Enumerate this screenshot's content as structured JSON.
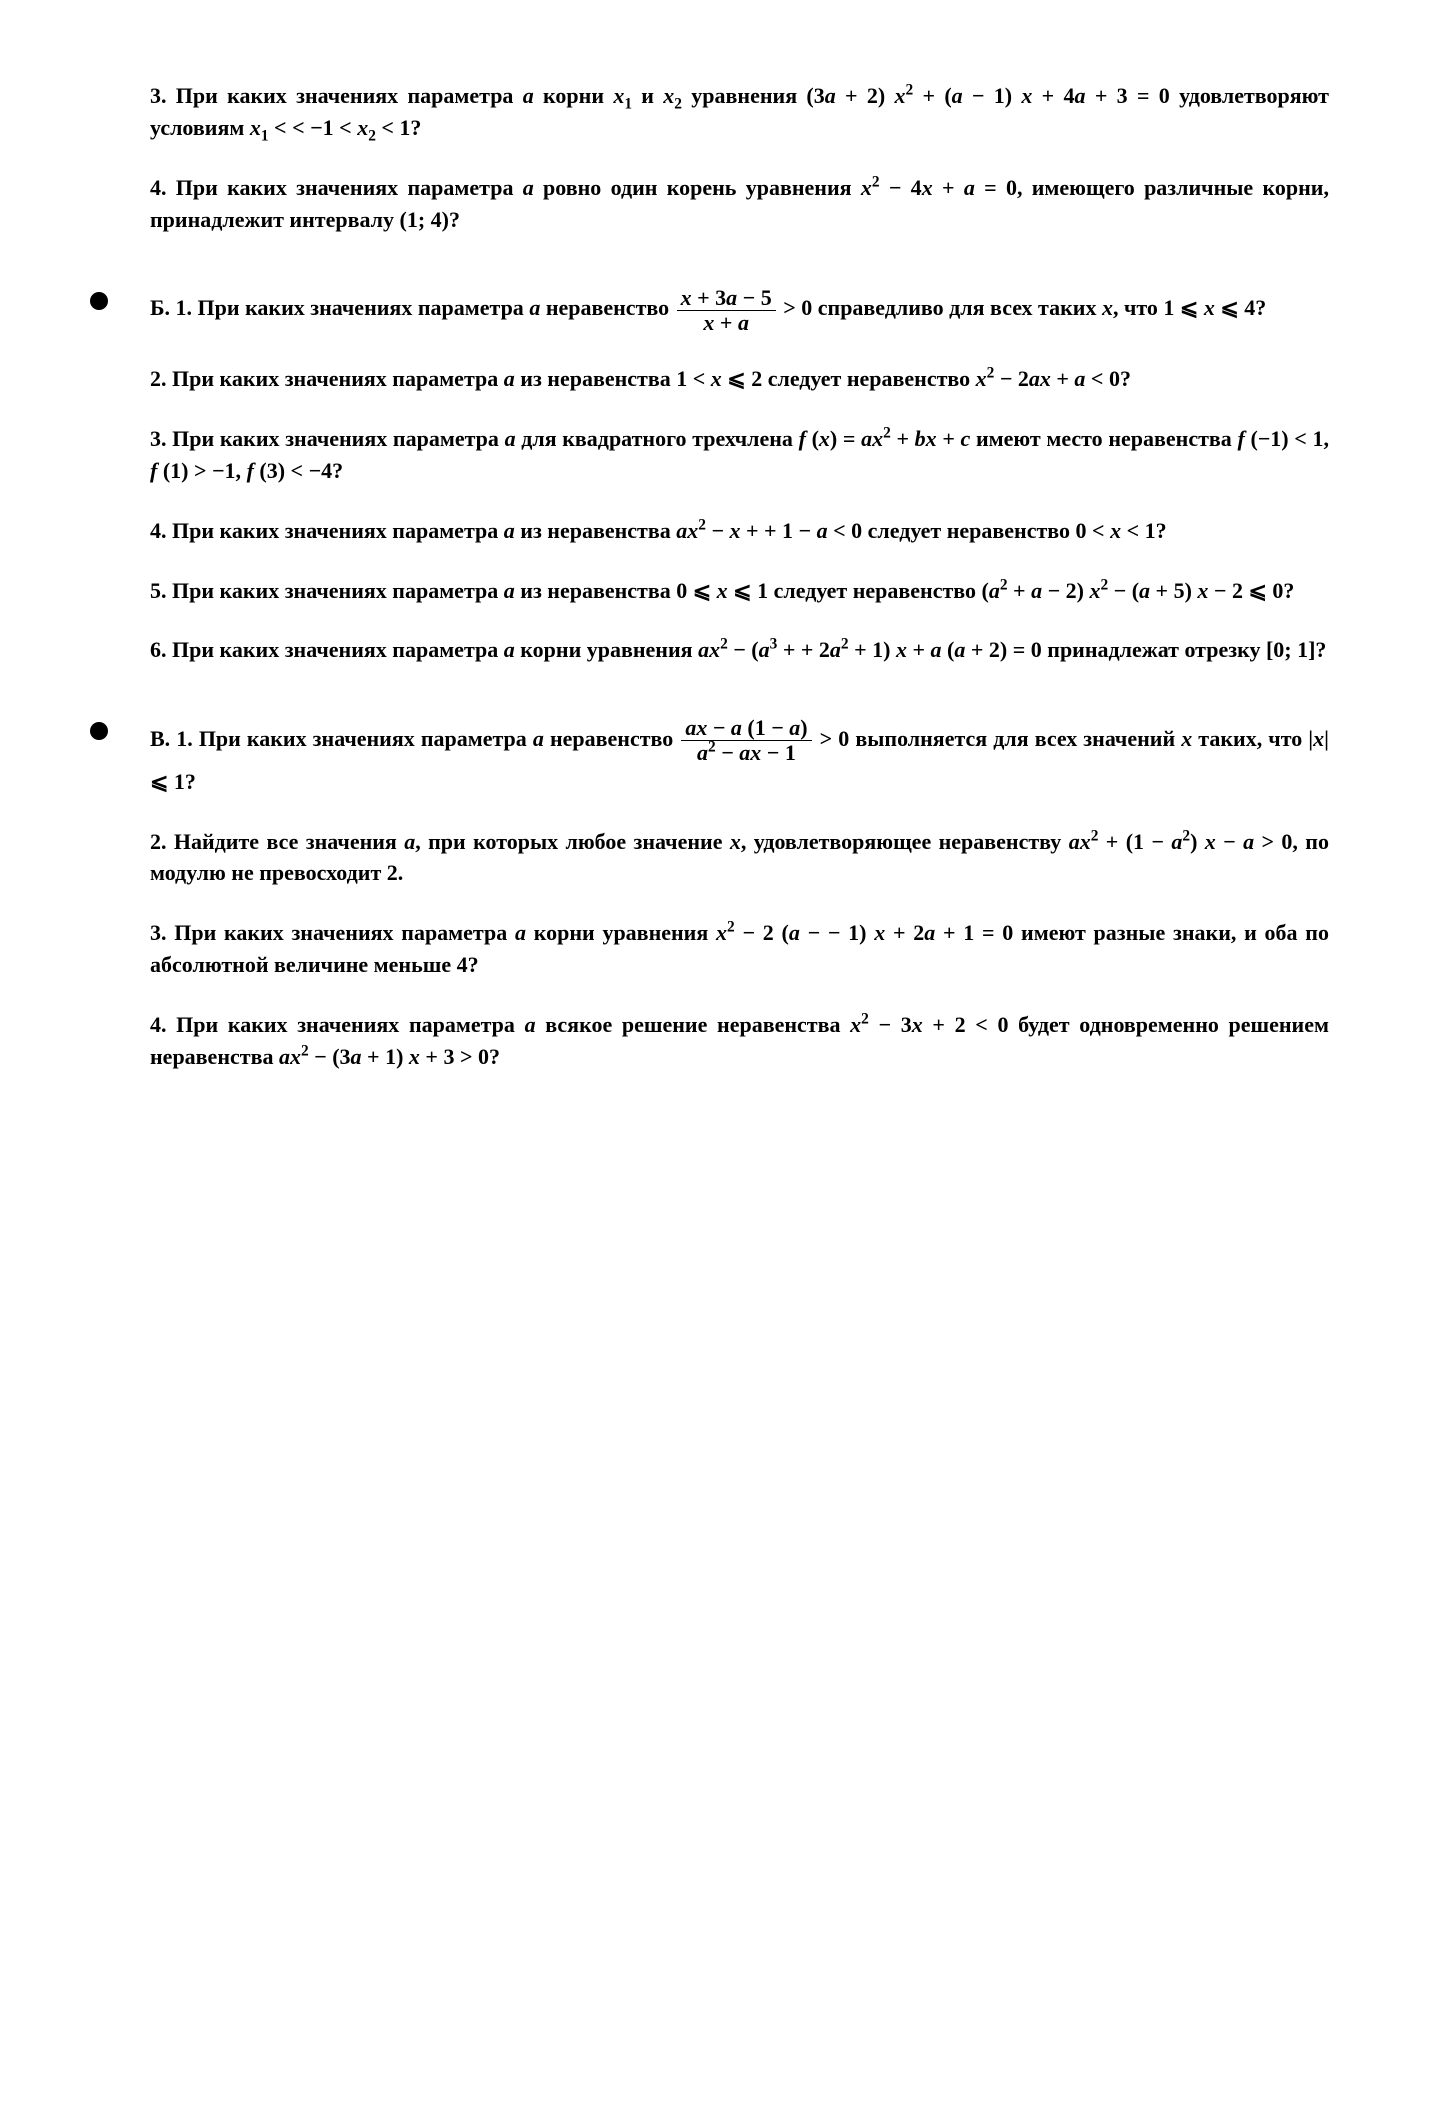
{
  "document": {
    "type": "math-problems-page",
    "language": "ru",
    "font_family": "Times New Roman",
    "font_size_pt": 16,
    "text_color": "#000000",
    "background_color": "#ffffff"
  },
  "sections": {
    "top": {
      "problems": [
        {
          "number": "3",
          "html": "3. При каких значениях параметра <span class='ital'>a</span> корни <span class='ital'>x</span><sub>1</sub> и <span class='ital'>x</span><sub>2</sub> уравнения (3<span class='ital'>a</span> + 2) <span class='ital'>x</span><sup>2</sup> + (<span class='ital'>a</span> − 1) <span class='ital'>x</span> + 4<span class='ital'>a</span> + 3 = 0 удовлетворяют условиям <span class='ital'>x</span><sub>1</sub> < < −1 < <span class='ital'>x</span><sub>2</sub> < 1?"
        },
        {
          "number": "4",
          "html": "4. При каких значениях параметра <span class='ital'>a</span> ровно один корень уравнения <span class='ital'>x</span><sup>2</sup> − 4<span class='ital'>x</span> + <span class='ital'>a</span> = 0, имеющего различные корни, принадлежит интервалу (1; 4)?"
        }
      ]
    },
    "B": {
      "label": "Б.",
      "intro": {
        "number": "1",
        "html": "<span class='section-header'>Б. 1.</span> При каких значениях параметра <span class='ital'>a</span> неравенство <span class='frac'><span class='num'><span class='ital'>x</span> + 3<span class='ital'>a</span> − 5</span><span class='den'><span class='ital'>x</span> + <span class='ital'>a</span></span></span> > 0 справедливо для всех таких <span class='ital'>x</span>, что 1 ⩽ <span class='ital'>x</span> ⩽ 4?"
      },
      "problems": [
        {
          "number": "2",
          "html": "2. При каких значениях параметра <span class='ital'>a</span> из неравенства 1 < <span class='ital'>x</span> ⩽ 2 следует неравенство <span class='ital'>x</span><sup>2</sup> − 2<span class='ital'>ax</span> + <span class='ital'>a</span> < 0?"
        },
        {
          "number": "3",
          "html": "3. При каких значениях параметра <span class='ital'>a</span> для квадратного трехчлена <span class='ital'>f</span> (<span class='ital'>x</span>) = <span class='ital'>ax</span><sup>2</sup> + <span class='ital'>bx</span> + <span class='ital'>c</span> имеют место неравенства <span class='ital'>f</span> (−1) < 1, <span class='ital'>f</span> (1) > −1, <span class='ital'>f</span> (3) < −4?"
        },
        {
          "number": "4",
          "html": "4. При каких значениях параметра <span class='ital'>a</span> из неравенства <span class='ital'>ax</span><sup>2</sup> − <span class='ital'>x</span> + + 1 − <span class='ital'>a</span> < 0 следует неравенство 0 < <span class='ital'>x</span> < 1?"
        },
        {
          "number": "5",
          "html": "5. При каких значениях параметра <span class='ital'>a</span> из неравенства 0 ⩽ <span class='ital'>x</span> ⩽ 1 следует неравенство (<span class='ital'>a</span><sup>2</sup> + <span class='ital'>a</span> − 2) <span class='ital'>x</span><sup>2</sup> − (<span class='ital'>a</span> + 5) <span class='ital'>x</span> − 2 ⩽ 0?"
        },
        {
          "number": "6",
          "html": "6. При каких значениях параметра <span class='ital'>a</span> корни уравнения <span class='ital'>ax</span><sup>2</sup> − (<span class='ital'>a</span><sup>3</sup> + + 2<span class='ital'>a</span><sup>2</sup> + 1) <span class='ital'>x</span> + <span class='ital'>a</span> (<span class='ital'>a</span> + 2) = 0 принадлежат отрезку [0; 1]?"
        }
      ]
    },
    "V": {
      "label": "В.",
      "intro": {
        "number": "1",
        "html": "<span class='section-header'>В. 1.</span> При каких значениях параметра <span class='ital'>a</span> неравенство <span class='frac'><span class='num'><span class='ital'>ax</span> − <span class='ital'>a</span> (1 − <span class='ital'>a</span>)</span><span class='den'><span class='ital'>a</span><sup>2</sup> − <span class='ital'>ax</span> − 1</span></span> > 0 выполняется для всех значений <span class='ital'>x</span> таких, что |<span class='ital'>x</span>| ⩽ 1?"
      },
      "problems": [
        {
          "number": "2",
          "html": "2. Найдите все значения <span class='ital'>a</span>, при которых любое значение <span class='ital'>x</span>, удовлетворяющее неравенству <span class='ital'>ax</span><sup>2</sup> + (1 − <span class='ital'>a</span><sup>2</sup>) <span class='ital'>x</span> − <span class='ital'>a</span> > 0, по модулю не превосходит 2."
        },
        {
          "number": "3",
          "html": "3. При каких значениях параметра <span class='ital'>a</span> корни уравнения <span class='ital'>x</span><sup>2</sup> − 2 (<span class='ital'>a</span> − − 1) <span class='ital'>x</span> + 2<span class='ital'>a</span> + 1 = 0 имеют разные знаки, и оба по абсолютной величине меньше 4?"
        },
        {
          "number": "4",
          "html": "4. При каких значениях параметра <span class='ital'>a</span> всякое решение неравенства <span class='ital'>x</span><sup>2</sup> − 3<span class='ital'>x</span> + 2 < 0 будет одновременно решением неравенства <span class='ital'>ax</span><sup>2</sup> − (3<span class='ital'>a</span> + 1) <span class='ital'>x</span> + 3 > 0?"
        }
      ]
    }
  }
}
